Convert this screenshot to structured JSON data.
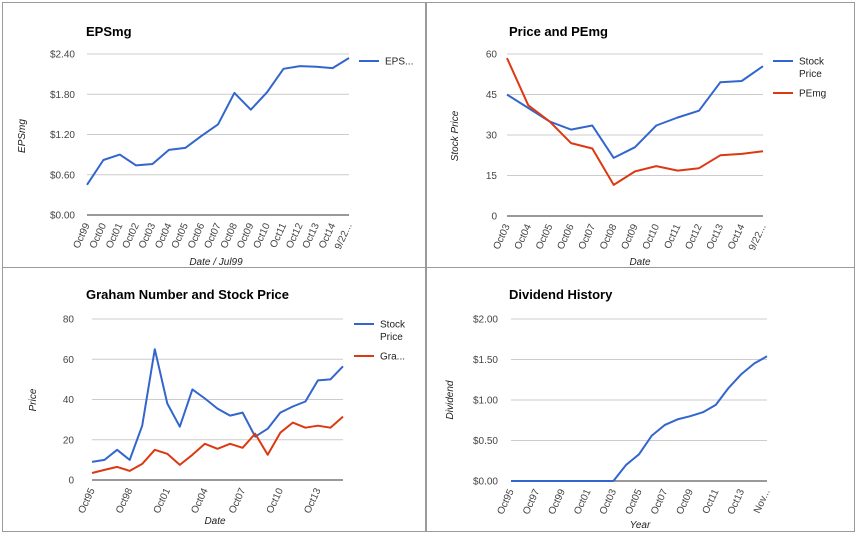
{
  "chart_data": [
    {
      "id": "eps",
      "type": "line",
      "title": "EPSmg",
      "xlabel": "Date / Jul99",
      "ylabel": "EPSmg",
      "ylim": [
        0,
        2.4
      ],
      "yticks": [
        "$0.00",
        "$0.60",
        "$1.20",
        "$1.80",
        "$2.40"
      ],
      "ytick_values": [
        0,
        0.6,
        1.2,
        1.8,
        2.4
      ],
      "xticks": [
        "Oct99",
        "Oct00",
        "Oct01",
        "Oct02",
        "Oct03",
        "Oct04",
        "Oct05",
        "Oct06",
        "Oct07",
        "Oct08",
        "Oct09",
        "Oct10",
        "Oct11",
        "Oct12",
        "Oct13",
        "Oct14",
        "9/22..."
      ],
      "x_count": 17,
      "grid": true,
      "legend": "right",
      "series": [
        {
          "name": "EPS...",
          "color": "#3366cc",
          "values": [
            0.45,
            0.82,
            0.9,
            0.74,
            0.76,
            0.97,
            1.0,
            1.18,
            1.35,
            1.82,
            1.57,
            1.83,
            2.18,
            2.22,
            2.21,
            2.19,
            2.34
          ]
        }
      ]
    },
    {
      "id": "pe",
      "type": "line",
      "title": "Price and PEmg",
      "xlabel": "Date",
      "ylabel": "Stock Price",
      "ylim": [
        0,
        60
      ],
      "yticks": [
        "0",
        "15",
        "30",
        "45",
        "60"
      ],
      "ytick_values": [
        0,
        15,
        30,
        45,
        60
      ],
      "xticks": [
        "Oct03",
        "Oct04",
        "Oct05",
        "Oct06",
        "Oct07",
        "Oct08",
        "Oct09",
        "Oct10",
        "Oct11",
        "Oct12",
        "Oct13",
        "Oct14",
        "9/22..."
      ],
      "x_count": 13,
      "grid": true,
      "legend": "right",
      "series": [
        {
          "name": "Stock Price",
          "color": "#3366cc",
          "values": [
            45,
            40,
            35,
            32,
            33.5,
            21.5,
            25.5,
            33.5,
            36.5,
            39,
            49.5,
            50,
            55.5
          ]
        },
        {
          "name": "PEmg",
          "color": "#dc3912",
          "values": [
            58.5,
            41,
            35,
            27,
            25,
            11.5,
            16.5,
            18.5,
            16.8,
            17.7,
            22.5,
            23,
            24
          ]
        }
      ]
    },
    {
      "id": "graham",
      "type": "line",
      "title": "Graham Number and Stock Price",
      "xlabel": "Date",
      "ylabel": "Price",
      "ylim": [
        0,
        80
      ],
      "yticks": [
        "0",
        "20",
        "40",
        "60",
        "80"
      ],
      "ytick_values": [
        0,
        20,
        40,
        60,
        80
      ],
      "xticks": [
        "Oct95",
        "Oct98",
        "Oct01",
        "Oct04",
        "Oct07",
        "Oct10",
        "Oct13"
      ],
      "xtick_index": [
        0,
        3,
        6,
        9,
        12,
        15,
        18
      ],
      "x_count": 21,
      "grid": true,
      "legend": "right",
      "series": [
        {
          "name": "Stock Price",
          "color": "#3366cc",
          "values": [
            9,
            10,
            15,
            10,
            27,
            65,
            38,
            26.5,
            45,
            40.5,
            35.5,
            32,
            33.5,
            21.5,
            25.5,
            33.5,
            36.5,
            39,
            49.5,
            50,
            56.5
          ]
        },
        {
          "name": "Gra...",
          "color": "#dc3912",
          "values": [
            3.5,
            5,
            6.5,
            4.5,
            8,
            15,
            13,
            7.5,
            12.5,
            18,
            15.5,
            18,
            16,
            23,
            12.5,
            23.5,
            28.5,
            26,
            27,
            26,
            31.5
          ]
        }
      ]
    },
    {
      "id": "dividend",
      "type": "line",
      "title": "Dividend History",
      "xlabel": "Year",
      "ylabel": "Dividend",
      "ylim": [
        0,
        2.0
      ],
      "yticks": [
        "$0.00",
        "$0.50",
        "$1.00",
        "$1.50",
        "$2.00"
      ],
      "ytick_values": [
        0,
        0.5,
        1.0,
        1.5,
        2.0
      ],
      "xticks": [
        "Oct95",
        "Oct97",
        "Oct99",
        "Oct01",
        "Oct03",
        "Oct05",
        "Oct07",
        "Oct09",
        "Oct11",
        "Oct13",
        "Nov..."
      ],
      "xtick_index": [
        0,
        2,
        4,
        6,
        8,
        10,
        12,
        14,
        16,
        18,
        20
      ],
      "x_count": 21,
      "grid": true,
      "legend": "none",
      "series": [
        {
          "name": "",
          "color": "#3366cc",
          "values": [
            0,
            0,
            0,
            0,
            0,
            0,
            0,
            0,
            0,
            0.2,
            0.33,
            0.56,
            0.69,
            0.76,
            0.8,
            0.85,
            0.94,
            1.15,
            1.32,
            1.45,
            1.54
          ]
        }
      ]
    }
  ]
}
